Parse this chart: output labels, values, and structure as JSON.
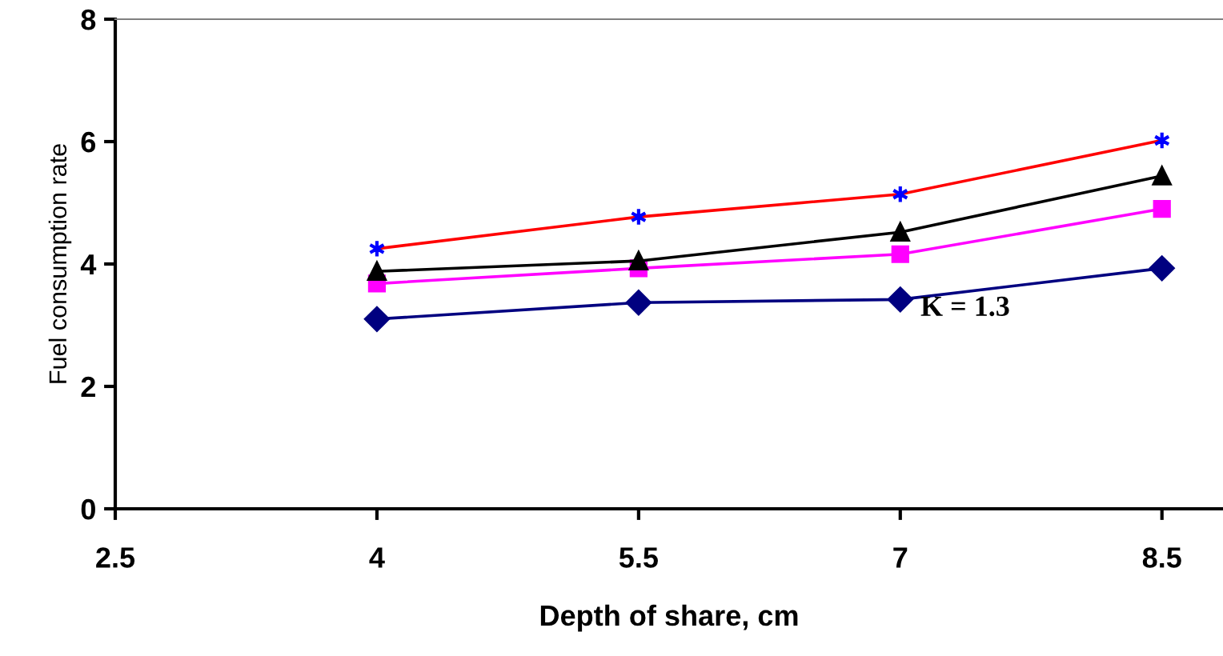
{
  "chart_data": {
    "type": "line",
    "xlabel": "Depth of share, cm",
    "ylabel": "Fuel consumption rate",
    "x": [
      4,
      5.5,
      7,
      8.5
    ],
    "series": [
      {
        "color": "#000080",
        "marker": "diamond",
        "values": [
          3.1,
          3.37,
          3.42,
          3.93
        ]
      },
      {
        "color": "#ff00ff",
        "marker": "square",
        "values": [
          3.68,
          3.93,
          4.16,
          4.9
        ]
      },
      {
        "color": "#000000",
        "marker": "triangle",
        "values": [
          3.88,
          4.05,
          4.52,
          5.44
        ]
      },
      {
        "color": "#ff0000",
        "marker": "cross",
        "colors": [
          "#0000ff",
          "#0000ff",
          "#0000ff",
          "#0000ff"
        ],
        "values": [
          4.25,
          4.77,
          5.14,
          6.02
        ]
      }
    ],
    "xlim": [
      2.5,
      8.85
    ],
    "xticks": [
      2.5,
      4,
      5.5,
      7,
      8.5
    ],
    "ylim": [
      0,
      8
    ],
    "yticks": [
      0,
      2,
      4,
      6,
      8
    ],
    "grid": false,
    "legend": false,
    "line_style": "solid",
    "annotations": [
      "K = 1.3"
    ]
  }
}
